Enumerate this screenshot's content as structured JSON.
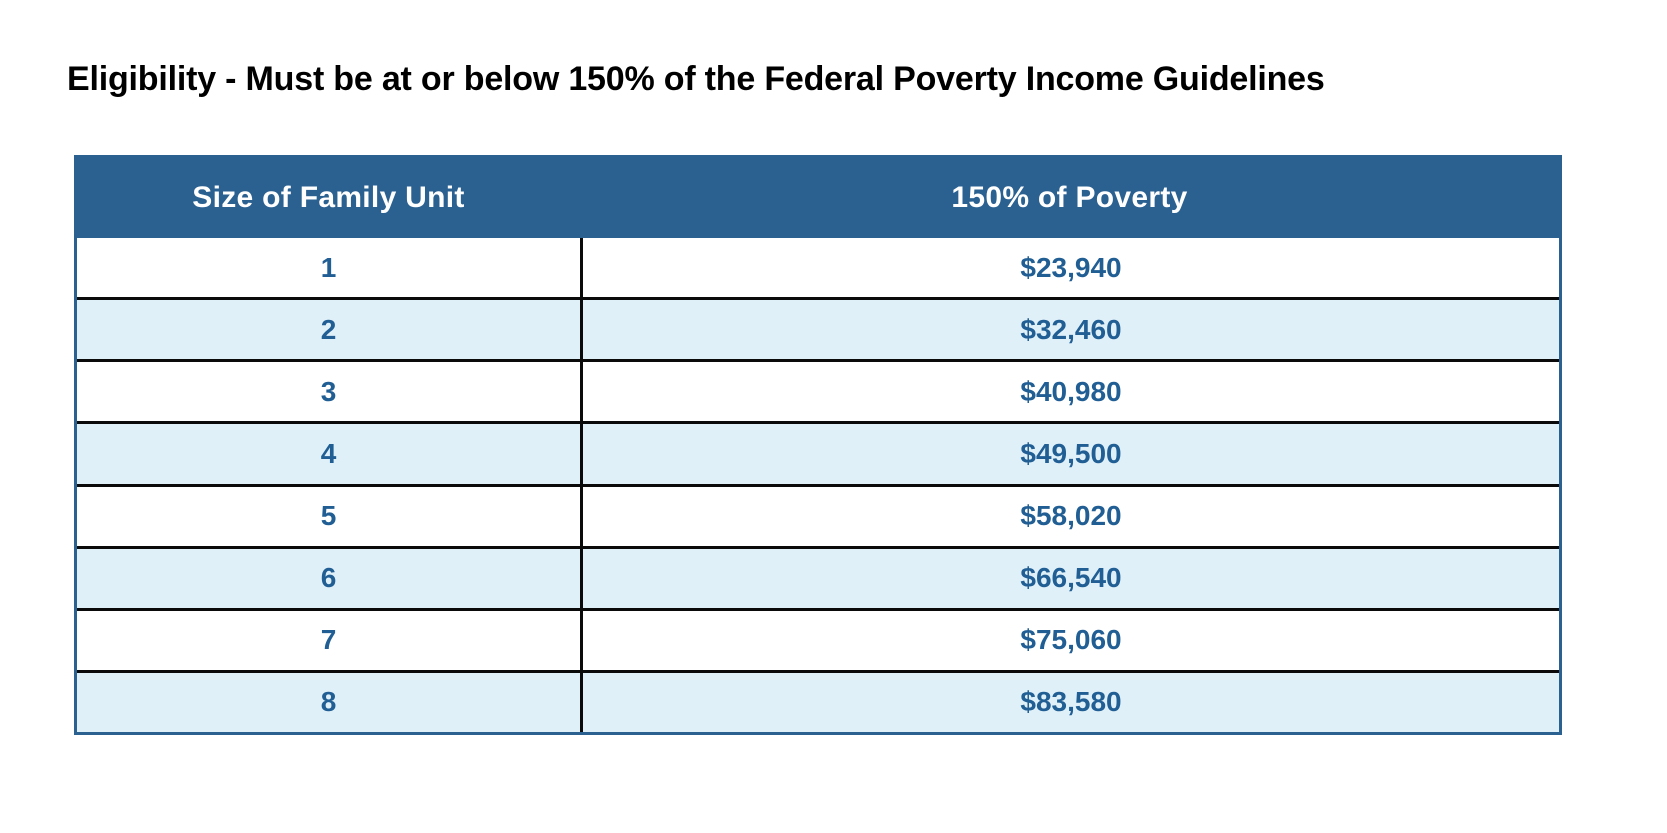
{
  "page": {
    "title": "Eligibility - Must be at or below 150% of the Federal Poverty Income Guidelines"
  },
  "table": {
    "columns": [
      "Size of Family Unit",
      "150% of Poverty"
    ],
    "rows": [
      {
        "size": "1",
        "income": "$23,940"
      },
      {
        "size": "2",
        "income": "$32,460"
      },
      {
        "size": "3",
        "income": "$40,980"
      },
      {
        "size": "4",
        "income": "$49,500"
      },
      {
        "size": "5",
        "income": "$58,020"
      },
      {
        "size": "6",
        "income": "$66,540"
      },
      {
        "size": "7",
        "income": "$75,060"
      },
      {
        "size": "8",
        "income": "$83,580"
      }
    ]
  },
  "colors": {
    "header_bg": "#2A6191",
    "header_text": "#FFFFFF",
    "row_bg": "#FFFFFF",
    "row_alt_bg": "#DFF0F9",
    "cell_text": "#205E94",
    "grid_line": "#0A0A0A",
    "outer_border": "#2A6191",
    "title_text": "#000000",
    "page_bg": "#FFFFFF"
  }
}
